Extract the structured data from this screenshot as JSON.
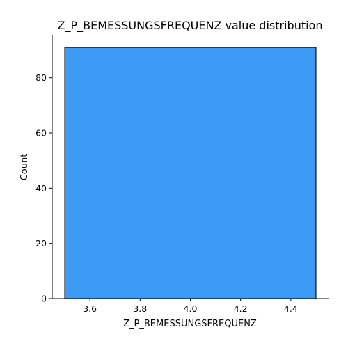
{
  "chart_data": {
    "type": "bar",
    "title": "Z_P_BEMESSUNGSFREQUENZ value distribution",
    "xlabel": "Z_P_BEMESSUNGSFREQUENZ",
    "ylabel": "Count",
    "bins": [
      {
        "x0": 3.5,
        "x1": 4.5,
        "count": 91
      }
    ],
    "xlim": [
      3.45,
      4.55
    ],
    "ylim": [
      0,
      95.55
    ],
    "xticks": [
      "3.6",
      "3.8",
      "4.0",
      "4.2",
      "4.4"
    ],
    "yticks": [
      "0",
      "20",
      "40",
      "60",
      "80"
    ],
    "grid": false,
    "bar_color": "#3d9bf6",
    "edge_color": "#000000"
  }
}
